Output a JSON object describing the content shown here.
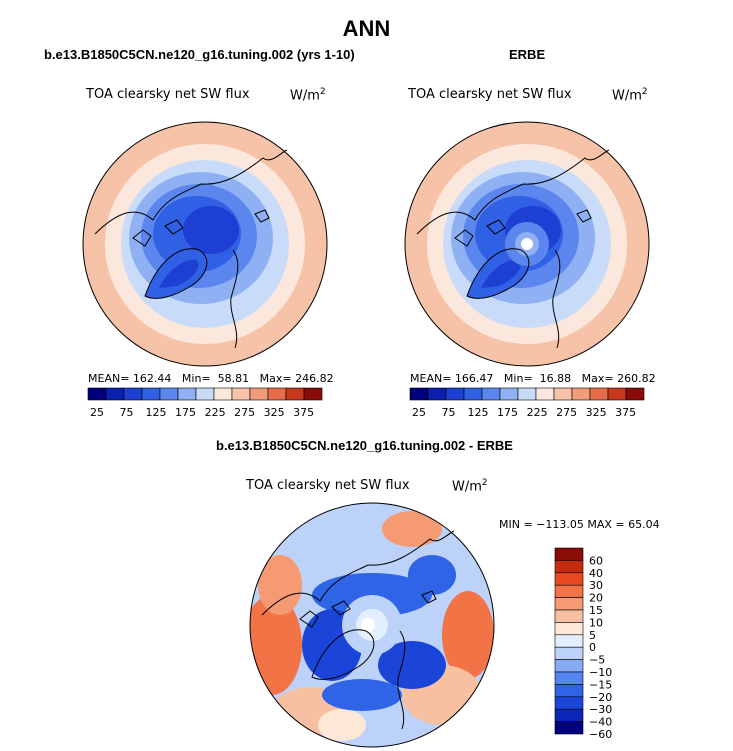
{
  "page": {
    "title": "ANN"
  },
  "colors": {
    "abs_scale": [
      "#00007f",
      "#0a1fb0",
      "#1d3fd4",
      "#3060e4",
      "#5a86ee",
      "#8fb0f3",
      "#c8dcf9",
      "#fbe7dc",
      "#f6c3a8",
      "#f19c7a",
      "#e86c4b",
      "#c9371f",
      "#8a0c06"
    ],
    "diff_scale": [
      "#00007f",
      "#0a27b8",
      "#1a45d8",
      "#2f64e6",
      "#5585ef",
      "#87aaf4",
      "#bcd2f9",
      "#e3efff",
      "#fde8d8",
      "#f8c0a2",
      "#f59a72",
      "#f17346",
      "#e8491f",
      "#c72b0f",
      "#8a0c06"
    ],
    "land_outline": "#000000",
    "background": "#ffffff"
  },
  "chart_data": [
    {
      "type": "heatmap",
      "projection": "north-polar-stereographic",
      "panel": "top-left",
      "title": "b.e13.B1850C5CN.ne120_g16.tuning.002 (yrs 1-10)",
      "variable": "TOA clearsky net SW flux",
      "units": "W/m",
      "units_exp": "2",
      "stats": {
        "mean_label": "MEAN=",
        "mean": "162.44",
        "min_label": "Min=",
        "min": "58.81",
        "max_label": "Max=",
        "max": "246.82"
      },
      "colorbar": {
        "orientation": "horizontal",
        "ticks": [
          "25",
          "75",
          "125",
          "175",
          "225",
          "275",
          "325",
          "375"
        ],
        "levels": [
          25,
          50,
          75,
          100,
          125,
          150,
          175,
          200,
          225,
          250,
          275,
          300,
          325,
          350,
          375
        ]
      }
    },
    {
      "type": "heatmap",
      "projection": "north-polar-stereographic",
      "panel": "top-right",
      "title": "ERBE",
      "variable": "TOA clearsky net SW flux",
      "units": "W/m",
      "units_exp": "2",
      "stats": {
        "mean_label": "MEAN=",
        "mean": "166.47",
        "min_label": "Min=",
        "min": "16.88",
        "max_label": "Max=",
        "max": "260.82"
      },
      "colorbar": {
        "orientation": "horizontal",
        "ticks": [
          "25",
          "75",
          "125",
          "175",
          "225",
          "275",
          "325",
          "375"
        ],
        "levels": [
          25,
          50,
          75,
          100,
          125,
          150,
          175,
          200,
          225,
          250,
          275,
          300,
          325,
          350,
          375
        ]
      }
    },
    {
      "type": "heatmap",
      "projection": "north-polar-stereographic",
      "panel": "bottom",
      "title": "b.e13.B1850C5CN.ne120_g16.tuning.002 - ERBE",
      "variable": "TOA clearsky net SW flux",
      "units": "W/m",
      "units_exp": "2",
      "stats_text": "MIN = −113.05 MAX =  65.04",
      "colorbar": {
        "orientation": "vertical",
        "ticks": [
          "60",
          "40",
          "30",
          "20",
          "15",
          "10",
          "5",
          "0",
          "−5",
          "−10",
          "−15",
          "−20",
          "−30",
          "−40",
          "−60"
        ]
      }
    }
  ]
}
